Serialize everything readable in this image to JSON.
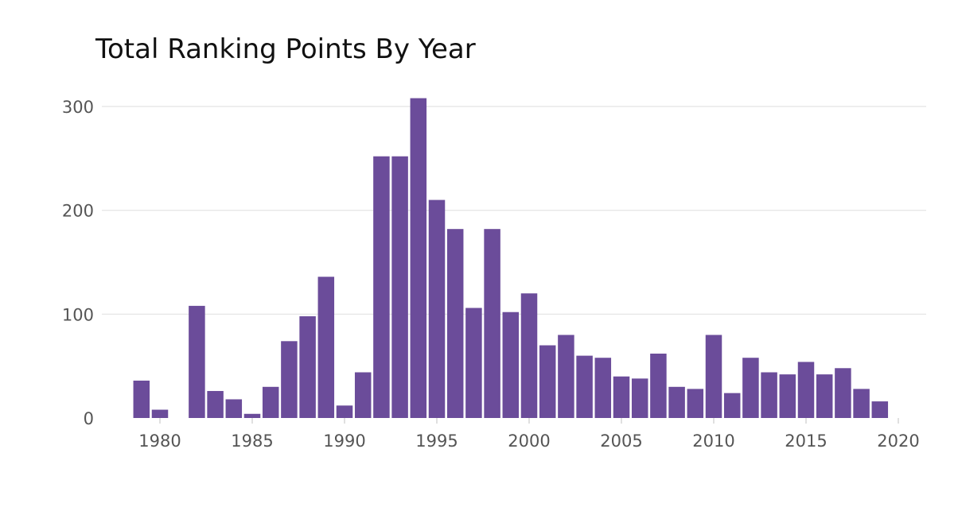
{
  "chart_data": {
    "type": "bar",
    "title": "Total Ranking Points By Year",
    "xlabel": "",
    "ylabel": "",
    "x": [
      1979,
      1980,
      1982,
      1983,
      1984,
      1985,
      1986,
      1987,
      1988,
      1989,
      1990,
      1991,
      1992,
      1993,
      1994,
      1995,
      1996,
      1997,
      1998,
      1999,
      2000,
      2001,
      2002,
      2003,
      2004,
      2005,
      2006,
      2007,
      2008,
      2009,
      2010,
      2011,
      2012,
      2013,
      2014,
      2015,
      2016,
      2017,
      2018,
      2019
    ],
    "values": [
      36,
      8,
      108,
      26,
      18,
      4,
      30,
      74,
      98,
      136,
      12,
      44,
      252,
      252,
      308,
      210,
      182,
      106,
      182,
      102,
      120,
      70,
      80,
      60,
      58,
      40,
      38,
      62,
      30,
      28,
      80,
      24,
      58,
      44,
      42,
      54,
      42,
      48,
      28,
      16
    ],
    "xlim": [
      1977.5,
      2020.5
    ],
    "ylim": [
      0,
      310
    ],
    "x_ticks": [
      "1980",
      "1985",
      "1990",
      "1995",
      "2000",
      "2005",
      "2010",
      "2015",
      "2020"
    ],
    "y_ticks": [
      "0",
      "100",
      "200",
      "300"
    ],
    "bar_color": "#6b4c9a",
    "grid": true,
    "legend": "none"
  }
}
